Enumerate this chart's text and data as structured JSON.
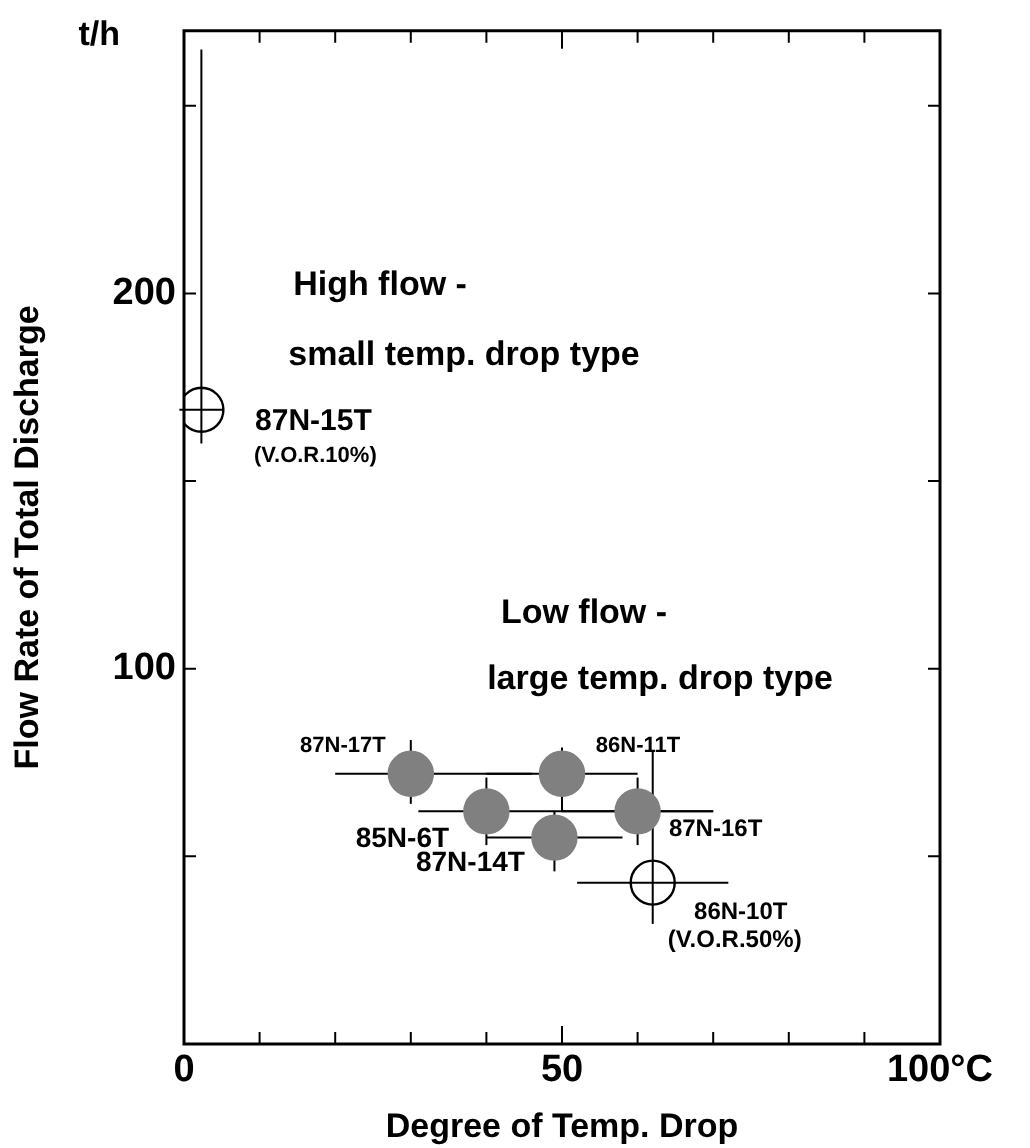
{
  "chart_data": {
    "type": "scatter",
    "xlabel": "Degree of Temp. Drop",
    "ylabel": "Flow Rate of Total Discharge",
    "xlim": [
      0,
      100
    ],
    "ylim": [
      0,
      270
    ],
    "xticks": [
      0,
      {
        "value": 10,
        "label": null
      },
      {
        "value": 20,
        "label": null
      },
      {
        "value": 30,
        "label": null
      },
      {
        "value": 40,
        "label": null
      },
      50,
      {
        "value": 60,
        "label": null
      },
      {
        "value": 70,
        "label": null
      },
      {
        "value": 80,
        "label": null
      },
      {
        "value": 90,
        "label": null
      },
      {
        "value": 100,
        "label": "100°C"
      }
    ],
    "yticks": [
      {
        "value": 50,
        "label": null
      },
      100,
      {
        "value": 150,
        "label": null
      },
      200,
      {
        "value": 250,
        "label": null
      }
    ],
    "grid": false,
    "legend": false,
    "marker": "circle",
    "series": [
      {
        "color": "#808080",
        "x": [
          30,
          50,
          40,
          60,
          49
        ],
        "values": [
          72,
          72,
          62,
          62,
          55
        ],
        "errors": [
          [
            64,
            81
          ],
          [
            62,
            79
          ],
          [
            53,
            71
          ],
          [
            53,
            71
          ],
          [
            46,
            62
          ]
        ],
        "xerrors": [
          [
            20,
            46
          ],
          [
            40,
            60
          ],
          [
            31,
            70
          ],
          [
            50,
            70
          ],
          [
            40,
            58
          ]
        ]
      },
      {
        "color": "#000000",
        "x": [
          2.3,
          62
        ],
        "values": [
          169,
          43
        ],
        "errors": [
          [
            160,
            265
          ],
          [
            32,
            78
          ]
        ],
        "xerrors": [
          null,
          [
            52,
            72
          ]
        ]
      }
    ],
    "annotations": [
      "t/h",
      "High flow -",
      "small temp. drop type",
      "Low flow -",
      "large temp. drop type",
      {
        "text": "87N-15T",
        "x": 2.3,
        "y": 169
      },
      {
        "text": "(V.O.R.10%)",
        "x": 2.3,
        "y": 169
      },
      {
        "text": "87N-17T",
        "x": 30,
        "y": 72
      },
      {
        "text": "86N-11T",
        "x": 50,
        "y": 72
      },
      {
        "text": "85N-6T",
        "x": 40,
        "y": 62
      },
      {
        "text": "87N-16T",
        "x": 60,
        "y": 62
      },
      {
        "text": "87N-14T",
        "x": 49,
        "y": 55
      },
      {
        "text": "86N-10T",
        "x": 62,
        "y": 43
      },
      {
        "text": "(V.O.R.50%)",
        "x": 62,
        "y": 43
      }
    ]
  }
}
